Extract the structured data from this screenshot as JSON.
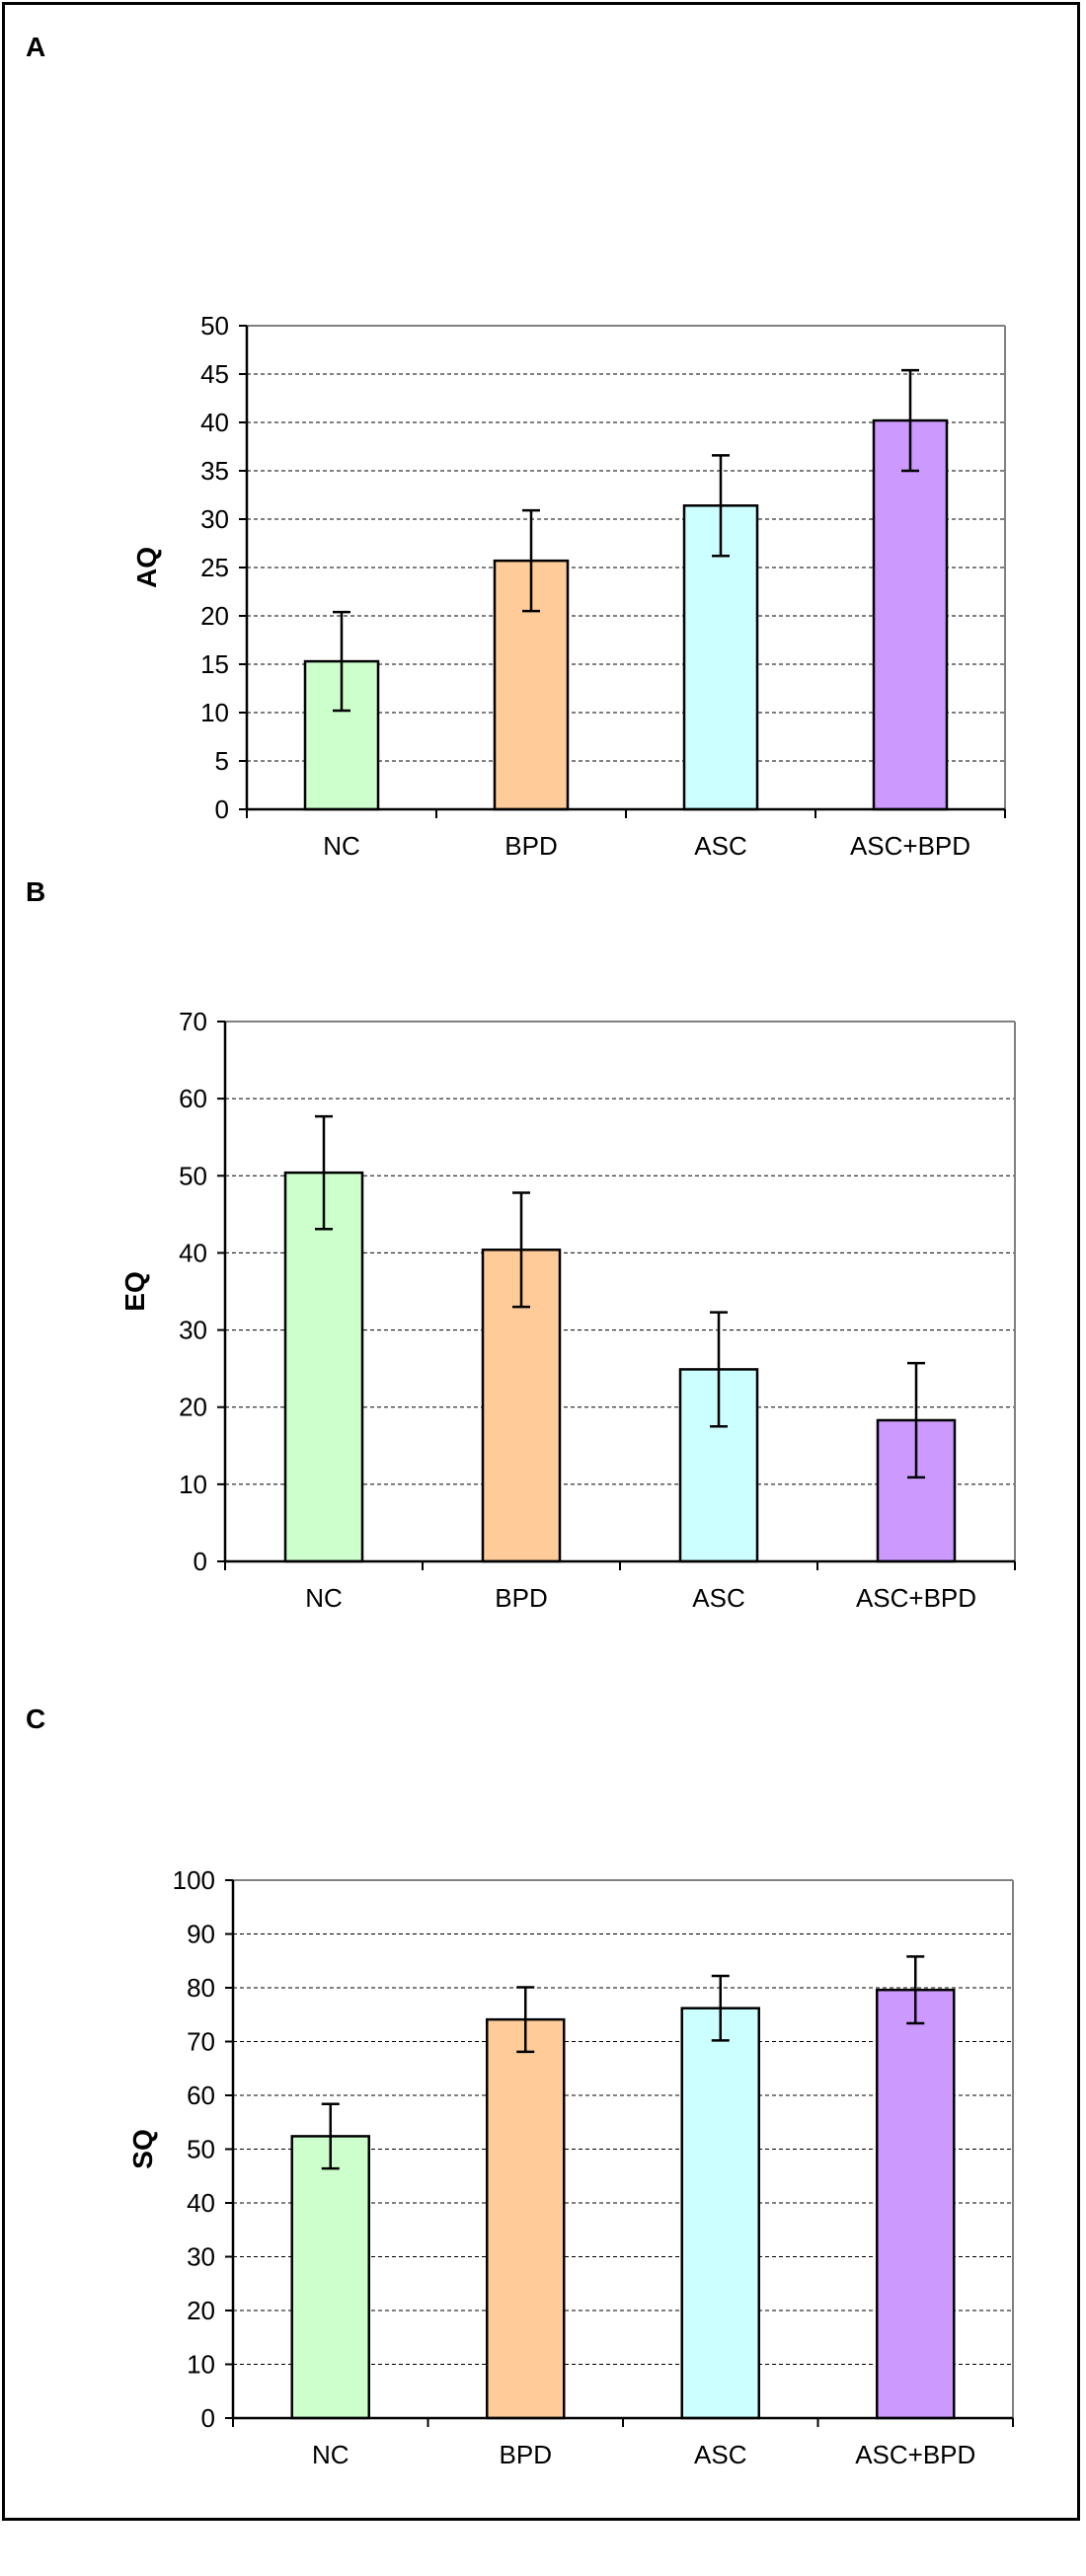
{
  "panels": [
    {
      "letter": "A"
    },
    {
      "letter": "B"
    },
    {
      "letter": "C"
    }
  ],
  "colors": {
    "NC": "#ccffcc",
    "BPD": "#ffcc99",
    "ASC": "#ccffff",
    "ASC+BPD": "#cc99ff",
    "outline": "#000000",
    "grid": "#000000",
    "plot_border": "#808080"
  },
  "chart_data": [
    {
      "type": "bar",
      "title": "",
      "xlabel": "",
      "ylabel": "AQ",
      "categories": [
        "NC",
        "BPD",
        "ASC",
        "ASC+BPD"
      ],
      "values": [
        15.3,
        25.7,
        31.4,
        40.2
      ],
      "errors": [
        5.1,
        5.2,
        5.2,
        5.2
      ],
      "ylim": [
        0,
        50
      ],
      "yticks": [
        0,
        5,
        10,
        15,
        20,
        25,
        30,
        35,
        40,
        45,
        50
      ],
      "grid": true,
      "error_bars": true
    },
    {
      "type": "bar",
      "title": "",
      "xlabel": "",
      "ylabel": "EQ",
      "categories": [
        "NC",
        "BPD",
        "ASC",
        "ASC+BPD"
      ],
      "values": [
        50.4,
        40.4,
        24.9,
        18.3
      ],
      "errors": [
        7.3,
        7.4,
        7.4,
        7.4
      ],
      "ylim": [
        0,
        70
      ],
      "yticks": [
        0,
        10,
        20,
        30,
        40,
        50,
        60,
        70
      ],
      "grid": true,
      "error_bars": true
    },
    {
      "type": "bar",
      "title": "",
      "xlabel": "",
      "ylabel": "SQ",
      "categories": [
        "NC",
        "BPD",
        "ASC",
        "ASC+BPD"
      ],
      "values": [
        52.4,
        74.1,
        76.2,
        79.6
      ],
      "errors": [
        6.0,
        6.0,
        6.0,
        6.2
      ],
      "ylim": [
        0,
        100
      ],
      "yticks": [
        0,
        10,
        20,
        30,
        40,
        50,
        60,
        70,
        80,
        90,
        100
      ],
      "grid": true,
      "error_bars": true
    }
  ]
}
